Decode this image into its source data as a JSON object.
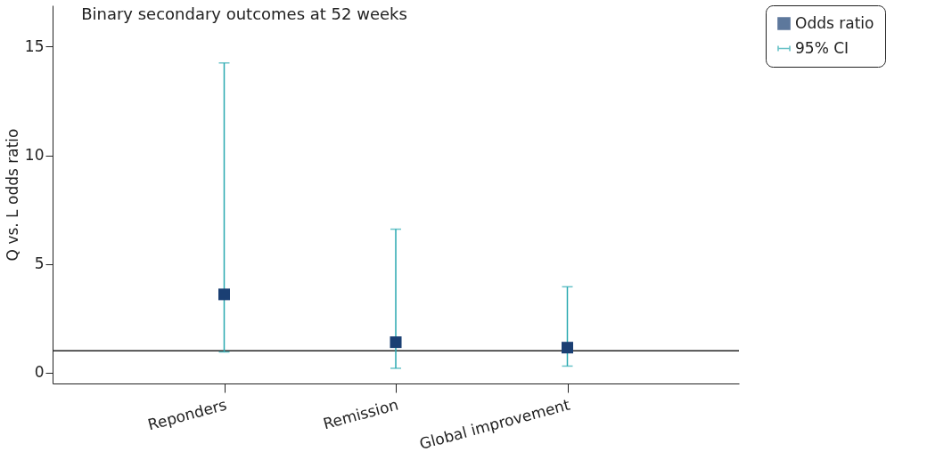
{
  "chart_data": {
    "type": "scatter",
    "title": "Binary secondary outcomes at 52 weeks",
    "ylabel": "Q vs. L odds ratio",
    "categories": [
      "Reponders",
      "Remission",
      "Global improvement"
    ],
    "series": [
      {
        "name": "Odds ratio",
        "color": "#1a3f73",
        "values": [
          3.6,
          1.4,
          1.15
        ],
        "errors": [
          [
            0.95,
            14.25
          ],
          [
            0.2,
            6.6
          ],
          [
            0.3,
            3.95
          ]
        ]
      }
    ],
    "annotations": [
      "95% CI"
    ],
    "ref_lines": [
      {
        "axis": "y",
        "value": 1,
        "color": "#222222"
      }
    ],
    "ylim": [
      -0.5,
      16.9
    ],
    "yticks": [
      0,
      5,
      10,
      15
    ],
    "grid": false,
    "legend": "right",
    "marker": "square"
  }
}
